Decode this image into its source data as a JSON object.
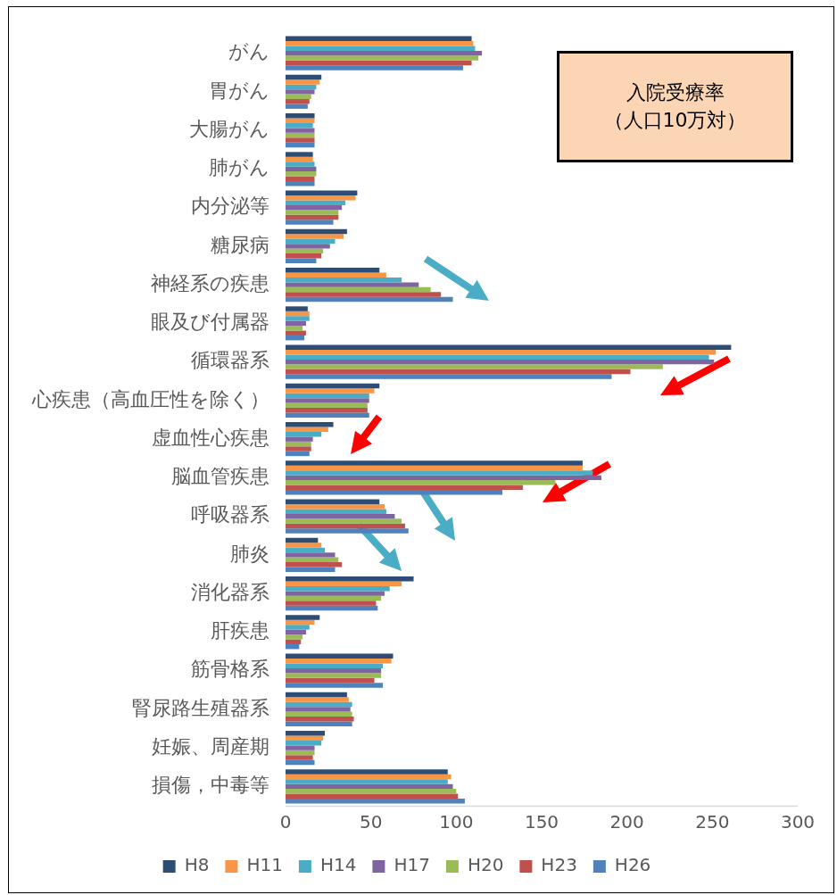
{
  "chart_data": {
    "type": "bar",
    "orientation": "horizontal",
    "title": "入院受療率",
    "subtitle": "（人口10万対）",
    "categories": [
      "がん",
      "胃がん",
      "大腸がん",
      "肺がん",
      "内分泌等",
      "糖尿病",
      "神経系の疾患",
      "眼及び付属器",
      "循環器系",
      "心疾患（高血圧性を除く）",
      "虚血性心疾患",
      "脳血管疾患",
      "呼吸器系",
      "肺炎",
      "消化器系",
      "肝疾患",
      "筋骨格系",
      "腎尿路生殖器系",
      "妊娠、周産期",
      "損傷，中毒等"
    ],
    "xlim": [
      0,
      300
    ],
    "xticks": [
      0,
      50,
      100,
      150,
      200,
      250,
      300
    ],
    "grid": false,
    "legend": "bottom",
    "series": [
      {
        "name": "H8",
        "color": "#2e4d75",
        "values": [
          109,
          21,
          17,
          16,
          42,
          36,
          55,
          13,
          261,
          55,
          28,
          174,
          55,
          19,
          75,
          20,
          63,
          36,
          23,
          95
        ]
      },
      {
        "name": "H11",
        "color": "#f79646",
        "values": [
          110,
          20,
          17,
          16,
          41,
          34,
          59,
          14,
          252,
          52,
          25,
          174,
          58,
          21,
          68,
          17,
          62,
          37,
          22,
          97
        ]
      },
      {
        "name": "H14",
        "color": "#4bacc6",
        "values": [
          111,
          18,
          16,
          17,
          35,
          29,
          68,
          14,
          248,
          49,
          21,
          180,
          59,
          23,
          61,
          14,
          57,
          39,
          21,
          95
        ]
      },
      {
        "name": "H17",
        "color": "#8064a2",
        "values": [
          115,
          17,
          17,
          18,
          33,
          26,
          78,
          12,
          251,
          49,
          16,
          185,
          64,
          29,
          58,
          12,
          56,
          38,
          17,
          98
        ]
      },
      {
        "name": "H20",
        "color": "#9bbb59",
        "values": [
          113,
          15,
          17,
          18,
          31,
          22,
          85,
          10,
          221,
          48,
          15,
          158,
          68,
          31,
          56,
          10,
          56,
          39,
          17,
          100
        ]
      },
      {
        "name": "H23",
        "color": "#c0504d",
        "values": [
          109,
          14,
          17,
          17,
          31,
          21,
          91,
          12,
          202,
          48,
          15,
          139,
          70,
          33,
          53,
          9,
          52,
          40,
          16,
          101
        ]
      },
      {
        "name": "H26",
        "color": "#4f81bd",
        "values": [
          104,
          13,
          17,
          17,
          28,
          18,
          98,
          11,
          191,
          49,
          14,
          127,
          72,
          29,
          54,
          8,
          57,
          39,
          17,
          105
        ]
      }
    ]
  }
}
